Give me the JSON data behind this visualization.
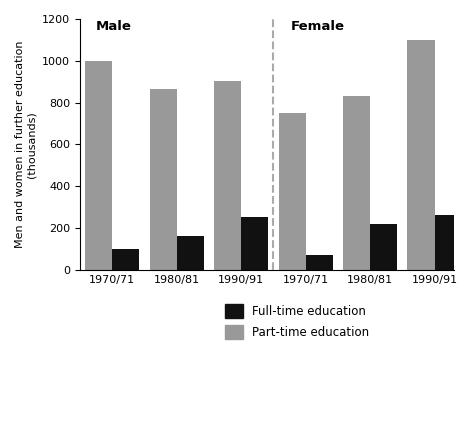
{
  "title_male": "Male",
  "title_female": "Female",
  "ylabel_line1": "Men and women in further education",
  "ylabel_line2": "(thousands)",
  "periods": [
    "1970/71",
    "1980/81",
    "1990/91"
  ],
  "male_fulltime": [
    100,
    160,
    250
  ],
  "male_parttime": [
    1000,
    865,
    905
  ],
  "female_fulltime": [
    70,
    220,
    260
  ],
  "female_parttime": [
    750,
    830,
    1100
  ],
  "fulltime_color": "#111111",
  "parttime_color": "#999999",
  "ylim": [
    0,
    1200
  ],
  "yticks": [
    0,
    200,
    400,
    600,
    800,
    1000,
    1200
  ],
  "bar_width": 0.42,
  "legend_labels": [
    "Full-time education",
    "Part-time education"
  ]
}
